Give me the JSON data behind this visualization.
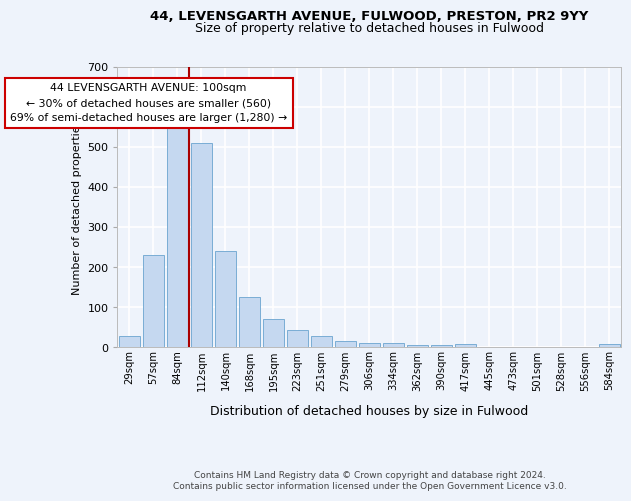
{
  "title1": "44, LEVENSGARTH AVENUE, FULWOOD, PRESTON, PR2 9YY",
  "title2": "Size of property relative to detached houses in Fulwood",
  "xlabel": "Distribution of detached houses by size in Fulwood",
  "ylabel": "Number of detached properties",
  "categories": [
    "29sqm",
    "57sqm",
    "84sqm",
    "112sqm",
    "140sqm",
    "168sqm",
    "195sqm",
    "223sqm",
    "251sqm",
    "279sqm",
    "306sqm",
    "334sqm",
    "362sqm",
    "390sqm",
    "417sqm",
    "445sqm",
    "473sqm",
    "501sqm",
    "528sqm",
    "556sqm",
    "584sqm"
  ],
  "values": [
    27,
    231,
    573,
    510,
    240,
    124,
    71,
    42,
    27,
    16,
    11,
    11,
    6,
    6,
    7,
    0,
    0,
    0,
    0,
    0,
    8
  ],
  "bar_color": "#c5d8f0",
  "bar_edge_color": "#7aadd4",
  "vline_x_index": 2.5,
  "annotation_line1": "44 LEVENSGARTH AVENUE: 100sqm",
  "annotation_line2": "← 30% of detached houses are smaller (560)",
  "annotation_line3": "69% of semi-detached houses are larger (1,280) →",
  "annotation_box_edge_color": "#cc0000",
  "annotation_box_face_color": "#ffffff",
  "vline_color": "#aa0000",
  "background_color": "#eef3fb",
  "axes_bg_color": "#eef3fb",
  "grid_color": "#ffffff",
  "ylim_max": 700,
  "yticks": [
    0,
    100,
    200,
    300,
    400,
    500,
    600,
    700
  ],
  "footer1": "Contains HM Land Registry data © Crown copyright and database right 2024.",
  "footer2": "Contains public sector information licensed under the Open Government Licence v3.0."
}
